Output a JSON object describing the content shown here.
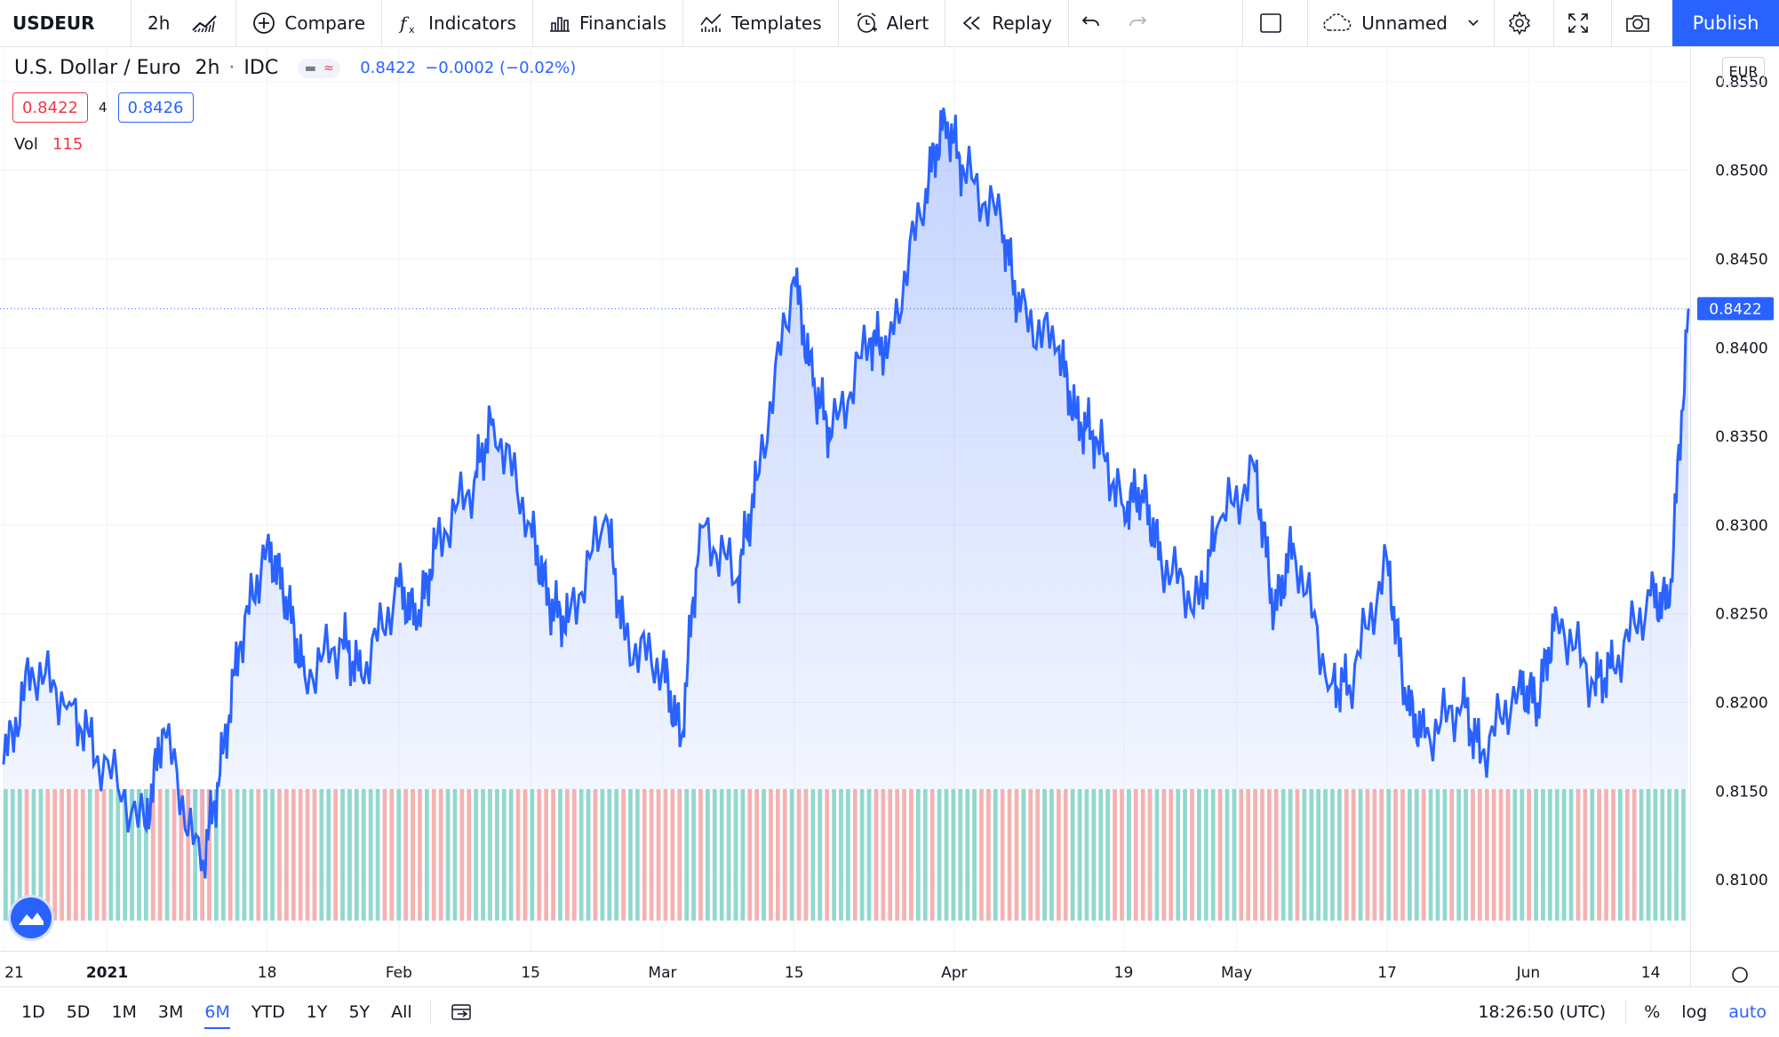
{
  "toolbar": {
    "symbol": "USDEUR",
    "interval": "2h",
    "compare": "Compare",
    "indicators": "Indicators",
    "financials": "Financials",
    "templates": "Templates",
    "alert": "Alert",
    "replay": "Replay",
    "layout_name": "Unnamed",
    "publish": "Publish"
  },
  "legend": {
    "title": "U.S. Dollar / Euro",
    "interval": "2h",
    "source": "IDC",
    "last": "0.8422",
    "change": "−0.0002 (−0.02%)",
    "bid": "0.8422",
    "spread": "4",
    "ask": "0.8426",
    "vol_label": "Vol",
    "vol_value": "115",
    "currency": "EUR"
  },
  "price_axis": {
    "ticks": [
      "0.8550",
      "0.8500",
      "0.8450",
      "0.8400",
      "0.8350",
      "0.8300",
      "0.8250",
      "0.8200",
      "0.8150",
      "0.8100"
    ],
    "current_label": "0.8422"
  },
  "time_axis": {
    "labels": [
      "21",
      "2021",
      "18",
      "Feb",
      "15",
      "Mar",
      "15",
      "Apr",
      "19",
      "May",
      "17",
      "Jun",
      "14"
    ]
  },
  "bottom": {
    "ranges": [
      "1D",
      "5D",
      "1M",
      "3M",
      "6M",
      "YTD",
      "1Y",
      "5Y",
      "All"
    ],
    "active_range": "6M",
    "clock": "18:26:50 (UTC)",
    "percent": "%",
    "log": "log",
    "auto": "auto"
  },
  "colors": {
    "line": "#2962ff",
    "accent": "#2962ff",
    "down": "#f23645",
    "vol_up": "#7fd1c6",
    "vol_down": "#f2a5a5"
  },
  "chart_data": {
    "type": "area",
    "series": [
      {
        "name": "USDEUR",
        "x": [
          "2020-12-21",
          "2020-12-24",
          "2020-12-28",
          "2020-12-31",
          "2021-01-05",
          "2021-01-07",
          "2021-01-11",
          "2021-01-13",
          "2021-01-15",
          "2021-01-18",
          "2021-01-20",
          "2021-01-22",
          "2021-01-26",
          "2021-01-28",
          "2021-02-01",
          "2021-02-03",
          "2021-02-05",
          "2021-02-09",
          "2021-02-11",
          "2021-02-15",
          "2021-02-17",
          "2021-02-19",
          "2021-02-23",
          "2021-02-25",
          "2021-03-01",
          "2021-03-03",
          "2021-03-05",
          "2021-03-09",
          "2021-03-11",
          "2021-03-15",
          "2021-03-17",
          "2021-03-19",
          "2021-03-23",
          "2021-03-25",
          "2021-03-29",
          "2021-03-31",
          "2021-04-02",
          "2021-04-06",
          "2021-04-08",
          "2021-04-12",
          "2021-04-14",
          "2021-04-16",
          "2021-04-19",
          "2021-04-21",
          "2021-04-23",
          "2021-04-27",
          "2021-04-29",
          "2021-05-03",
          "2021-05-05",
          "2021-05-07",
          "2021-05-11",
          "2021-05-13",
          "2021-05-17",
          "2021-05-19",
          "2021-05-21",
          "2021-05-25",
          "2021-05-27",
          "2021-05-31",
          "2021-06-02",
          "2021-06-04",
          "2021-06-08",
          "2021-06-10",
          "2021-06-14",
          "2021-06-16",
          "2021-06-18"
        ],
        "y": [
          0.8165,
          0.822,
          0.82,
          0.817,
          0.813,
          0.8185,
          0.8105,
          0.816,
          0.823,
          0.829,
          0.826,
          0.8215,
          0.8235,
          0.8215,
          0.8265,
          0.8245,
          0.829,
          0.8325,
          0.836,
          0.83,
          0.8255,
          0.8245,
          0.8305,
          0.8235,
          0.822,
          0.818,
          0.83,
          0.827,
          0.8325,
          0.844,
          0.838,
          0.835,
          0.8405,
          0.84,
          0.849,
          0.853,
          0.85,
          0.847,
          0.842,
          0.84,
          0.836,
          0.835,
          0.831,
          0.832,
          0.828,
          0.8255,
          0.83,
          0.833,
          0.825,
          0.829,
          0.821,
          0.821,
          0.828,
          0.82,
          0.818,
          0.82,
          0.817,
          0.821,
          0.82,
          0.825,
          0.821,
          0.822,
          0.826,
          0.8255,
          0.8422
        ]
      }
    ],
    "volume_bar_count": 240,
    "ylim": [
      0.806,
      0.857
    ],
    "xlabel": "",
    "ylabel": "",
    "grid": true
  }
}
